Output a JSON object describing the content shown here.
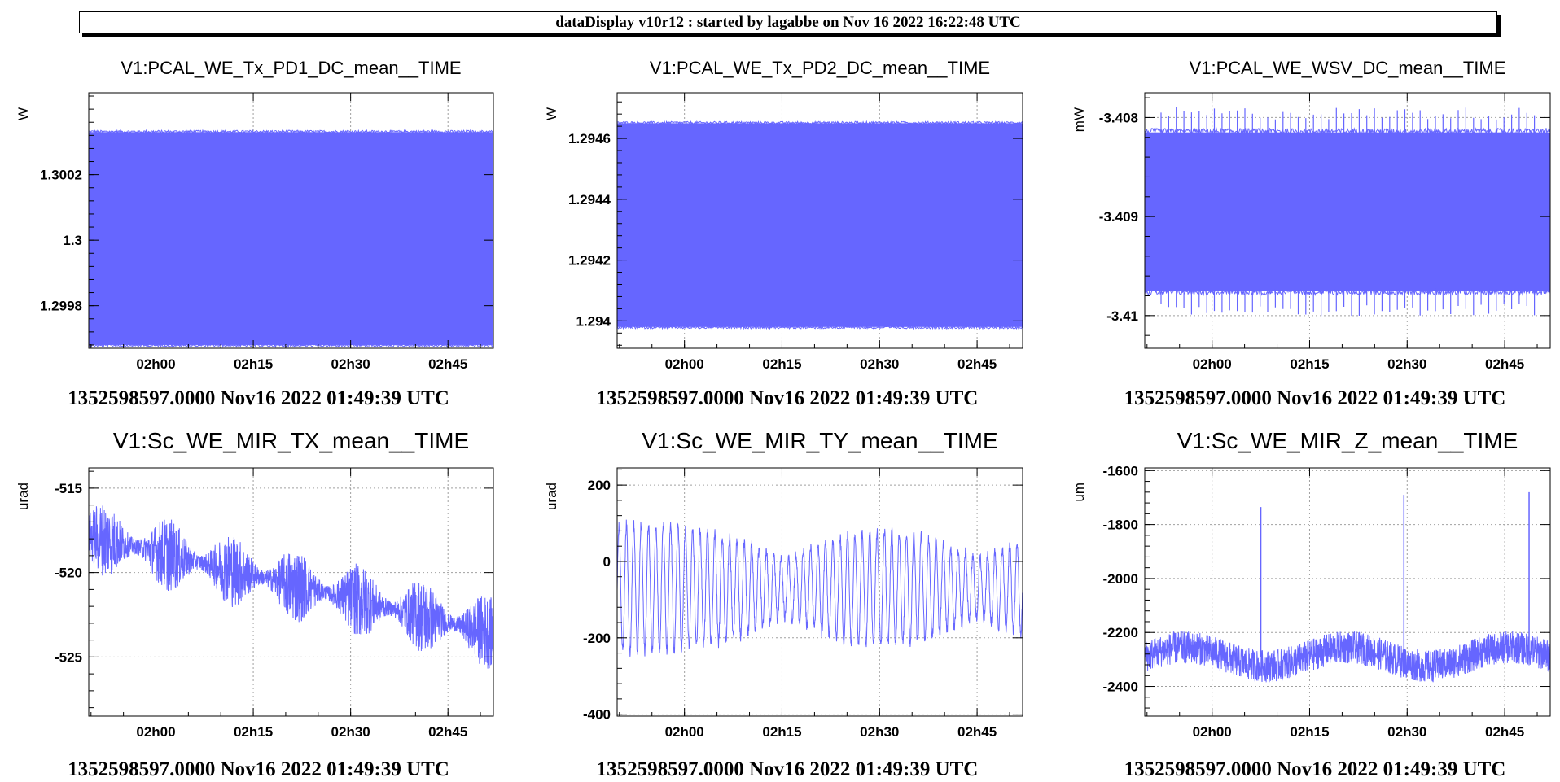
{
  "header": {
    "title": "dataDisplay v10r12 : started by lagabbe on Nov 16 2022 16:22:48 UTC"
  },
  "colors": {
    "trace": "#6666ff",
    "grid": "#a0a0a0",
    "axis": "#000000"
  },
  "chart_data": [
    {
      "type": "area",
      "title": "V1:PCAL_WE_Tx_PD1_DC_mean__TIME",
      "ylabel": "W",
      "footer": "1352598597.0000 Nov16 2022 01:49:39 UTC",
      "xlim": [
        "01:49:39",
        "02:52:00"
      ],
      "x_ticks": [
        "02h00",
        "02h15",
        "02h30",
        "02h45"
      ],
      "ylim": [
        1.29967,
        1.30045
      ],
      "y_ticks": [
        1.2998,
        1.3,
        1.3002
      ],
      "y_tick_labels": [
        "1.2998",
        "1.3",
        "1.3002"
      ],
      "series": [
        {
          "kind": "band",
          "upper": 1.30033,
          "lower": 1.29968
        }
      ],
      "grid": true
    },
    {
      "type": "area",
      "title": "V1:PCAL_WE_Tx_PD2_DC_mean__TIME",
      "ylabel": "W",
      "footer": "1352598597.0000 Nov16 2022 01:49:39 UTC",
      "xlim": [
        "01:49:39",
        "02:52:00"
      ],
      "x_ticks": [
        "02h00",
        "02h15",
        "02h30",
        "02h45"
      ],
      "ylim": [
        1.29391,
        1.29475
      ],
      "y_ticks": [
        1.294,
        1.2942,
        1.2944,
        1.2946
      ],
      "y_tick_labels": [
        "1.294",
        "1.2942",
        "1.2944",
        "1.2946"
      ],
      "series": [
        {
          "kind": "band",
          "upper": 1.29465,
          "lower": 1.29398
        }
      ],
      "grid": true
    },
    {
      "type": "area",
      "title": "V1:PCAL_WE_WSV_DC_mean__TIME",
      "ylabel": "mW",
      "footer": "1352598597.0000 Nov16 2022 01:49:39 UTC",
      "xlim": [
        "01:49:39",
        "02:52:00"
      ],
      "x_ticks": [
        "02h00",
        "02h15",
        "02h30",
        "02h45"
      ],
      "ylim": [
        -3.41033,
        -3.40775
      ],
      "y_ticks": [
        -3.41,
        -3.409,
        -3.408
      ],
      "y_tick_labels": [
        "-3.41",
        "-3.409",
        "-3.408"
      ],
      "series": [
        {
          "kind": "band",
          "upper": -3.40815,
          "lower": -3.40975
        }
      ],
      "grid": true
    },
    {
      "type": "line",
      "title": "V1:Sc_WE_MIR_TX_mean__TIME",
      "ylabel": "urad",
      "footer": "1352598597.0000 Nov16 2022 01:49:39 UTC",
      "xlim": [
        "01:49:39",
        "02:52:00"
      ],
      "x_ticks": [
        "02h00",
        "02h15",
        "02h30",
        "02h45"
      ],
      "ylim": [
        -528.5,
        -513.8
      ],
      "y_ticks": [
        -525,
        -520,
        -515
      ],
      "y_tick_labels": [
        "-525",
        "-520",
        "-515"
      ],
      "series": [
        {
          "kind": "noisy-trend",
          "start_mean": -517.8,
          "end_mean": -523.6,
          "spread": 2.2
        }
      ],
      "grid": true
    },
    {
      "type": "line",
      "title": "V1:Sc_WE_MIR_TY_mean__TIME",
      "ylabel": "urad",
      "footer": "1352598597.0000 Nov16 2022 01:49:39 UTC",
      "xlim": [
        "01:49:39",
        "02:52:00"
      ],
      "x_ticks": [
        "02h00",
        "02h15",
        "02h30",
        "02h45"
      ],
      "ylim": [
        -405,
        245
      ],
      "y_ticks": [
        -400,
        -200,
        0,
        200
      ],
      "y_tick_labels": [
        "-400",
        "-200",
        "0",
        "200"
      ],
      "series": [
        {
          "kind": "oscillation",
          "mean": -70,
          "amplitude": 150
        }
      ],
      "grid": true
    },
    {
      "type": "line",
      "title": "V1:Sc_WE_MIR_Z_mean__TIME",
      "ylabel": "um",
      "footer": "1352598597.0000 Nov16 2022 01:49:39 UTC",
      "xlim": [
        "01:49:39",
        "02:52:00"
      ],
      "x_ticks": [
        "02h00",
        "02h15",
        "02h30",
        "02h45"
      ],
      "ylim": [
        -2510,
        -1590
      ],
      "y_ticks": [
        -2400,
        -2200,
        -2000,
        -1800,
        -1600
      ],
      "y_tick_labels": [
        "-2400",
        "-2200",
        "-2000",
        "-1800",
        "-1600"
      ],
      "series": [
        {
          "kind": "noisy-baseline",
          "mean": -2290,
          "spread": 60,
          "spikes": [
            {
              "x": "02:07:30",
              "y": -1735
            },
            {
              "x": "02:29:30",
              "y": -1690
            },
            {
              "x": "02:48:45",
              "y": -1680
            }
          ]
        }
      ],
      "grid": true
    }
  ]
}
